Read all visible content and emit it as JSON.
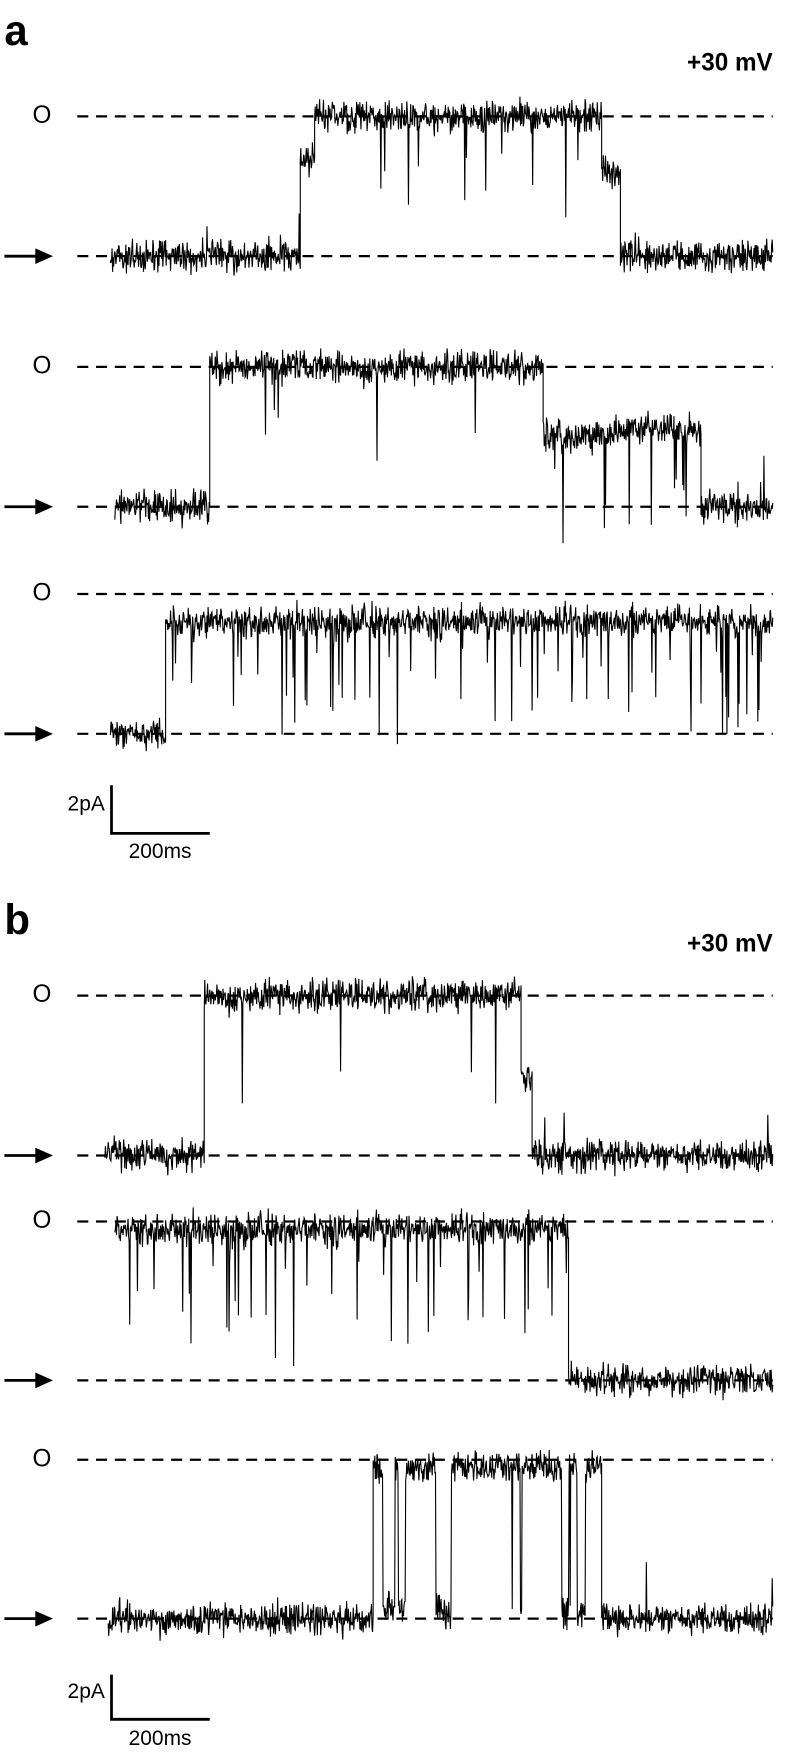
{
  "panels": [
    {
      "letter": "a",
      "voltage": "+30 mV",
      "open_labels": [
        "O",
        "O",
        "O"
      ],
      "scale_current": "2pA",
      "scale_time": "200ms"
    },
    {
      "letter": "b",
      "voltage": "+30 mV",
      "open_labels": [
        "O",
        "O",
        "O"
      ],
      "scale_current": "2pA",
      "scale_time": "200ms"
    }
  ]
}
